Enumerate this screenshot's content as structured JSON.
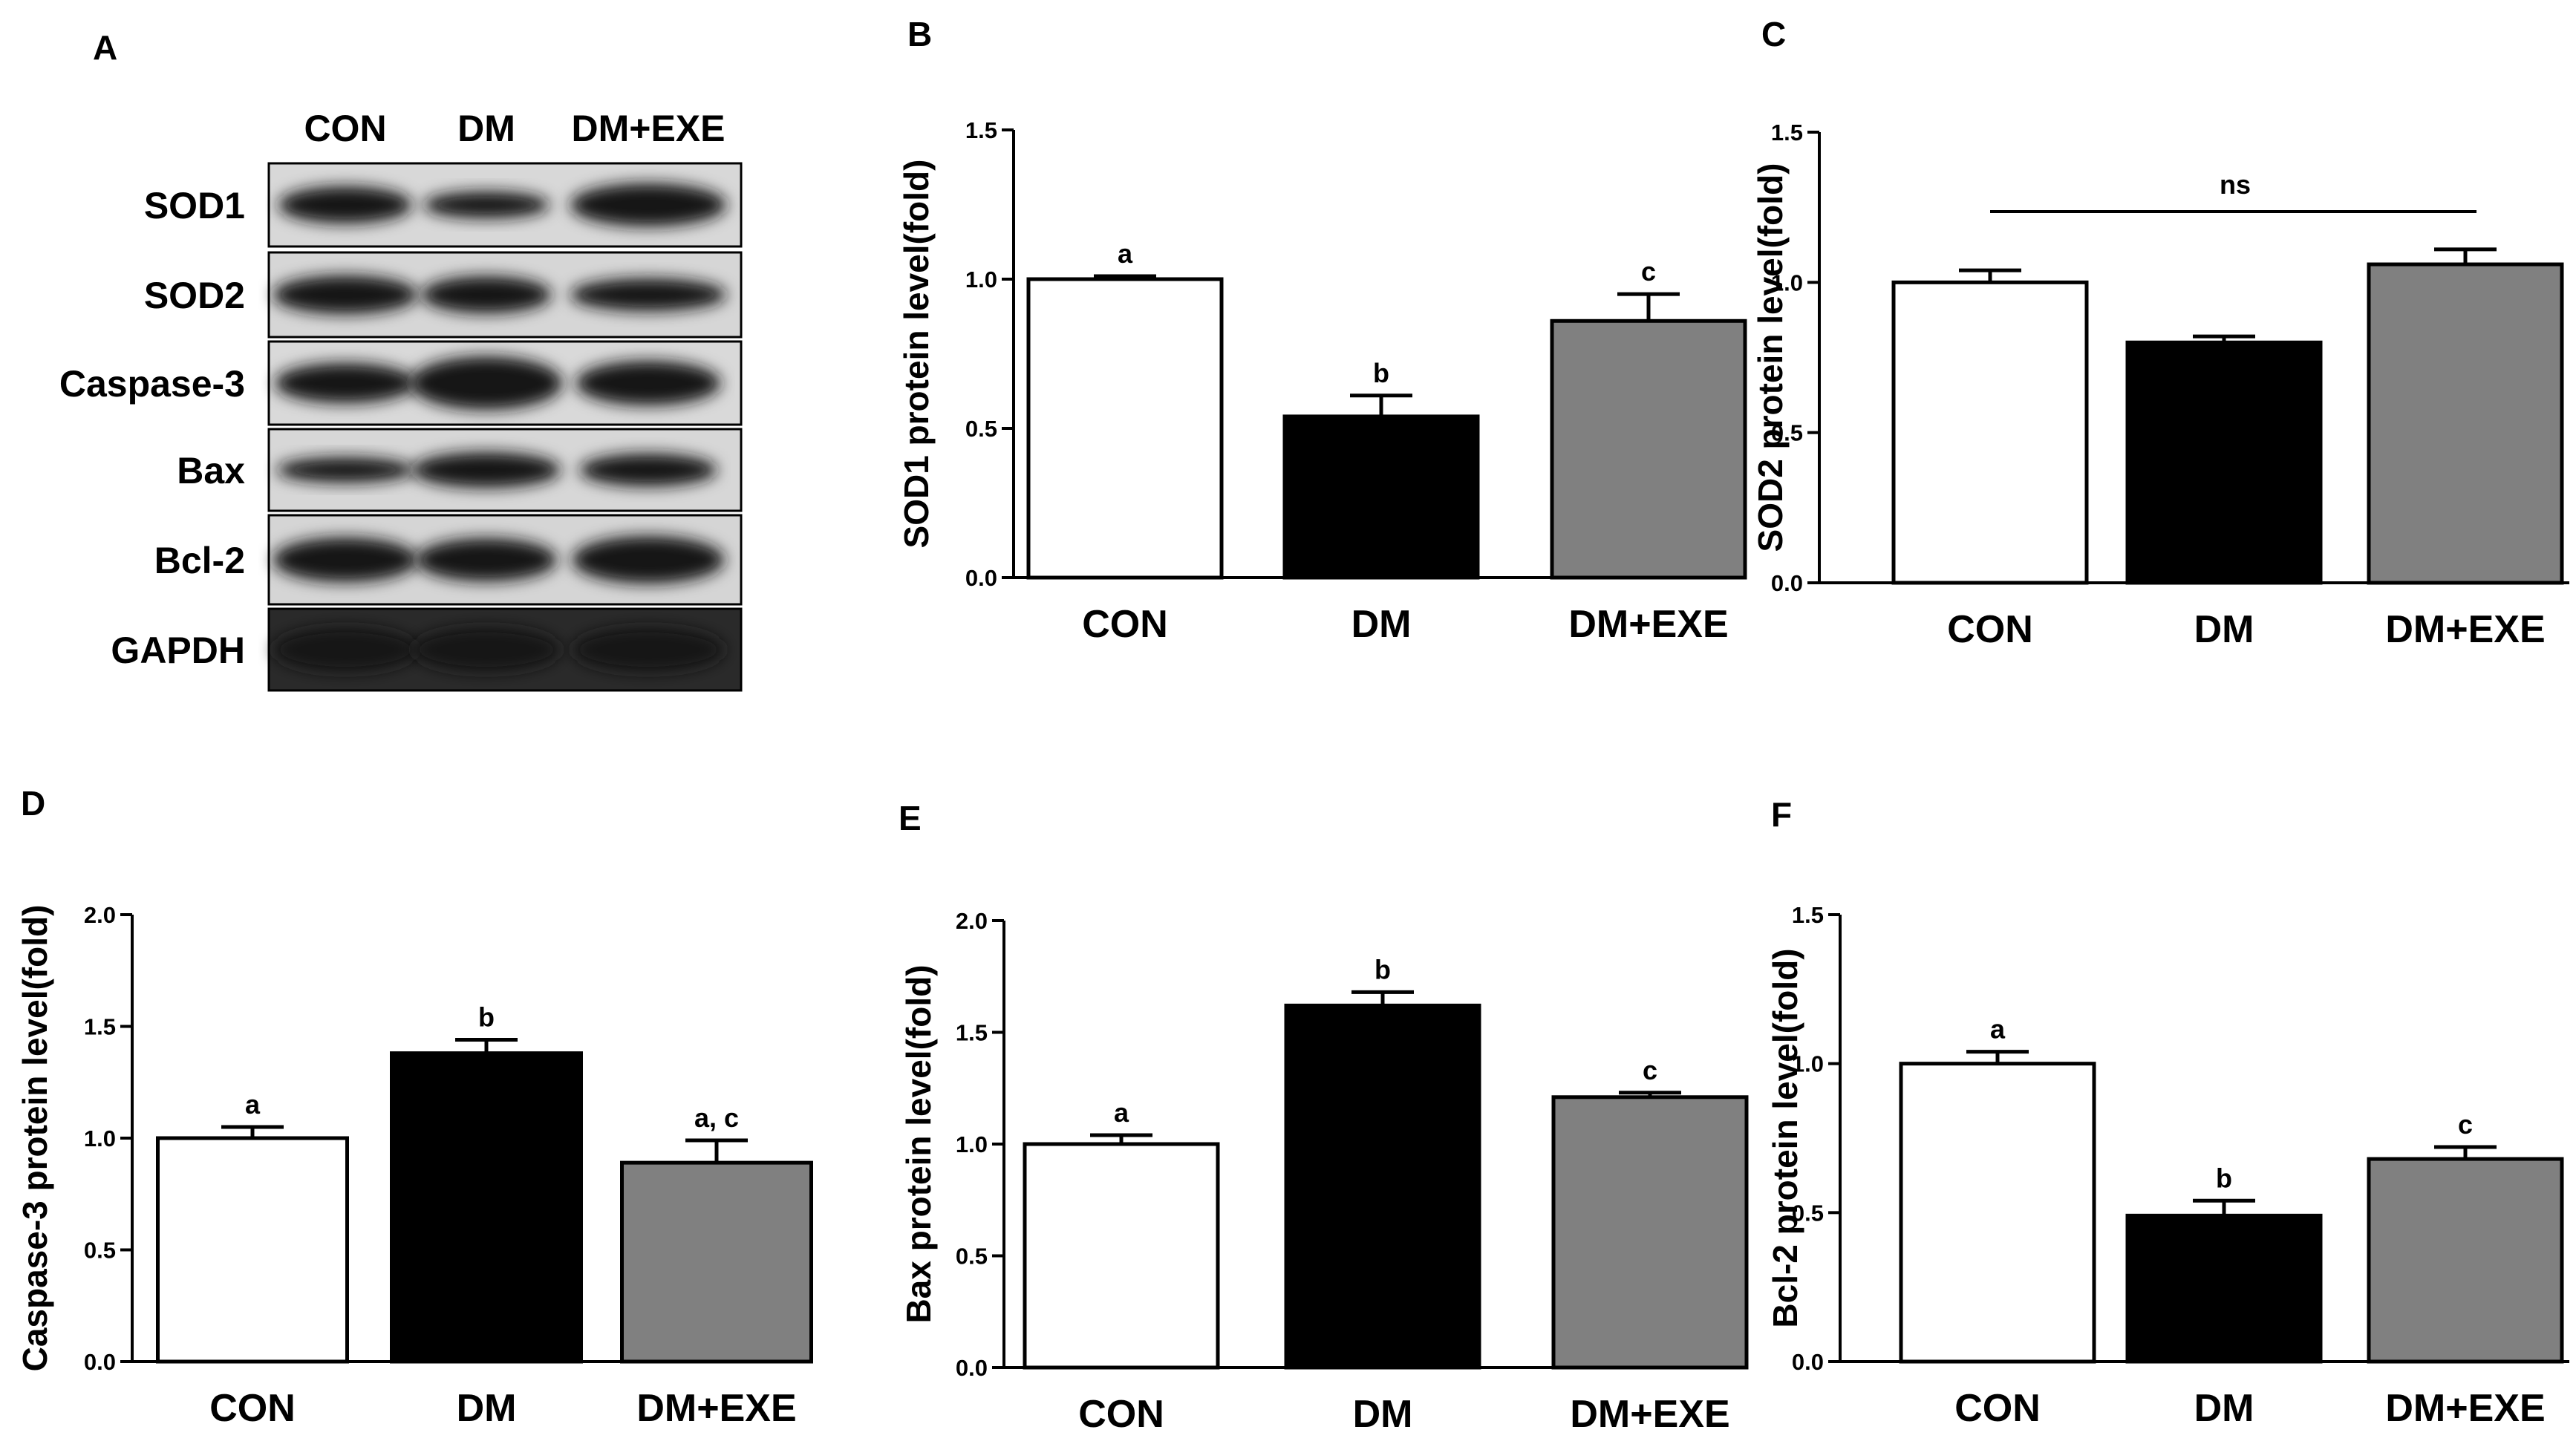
{
  "figure": {
    "western_blot": {
      "panel": "A",
      "columns": [
        "CON",
        "DM",
        "DM+EXE"
      ],
      "rows": [
        "SOD1",
        "SOD2",
        "Caspase-3",
        "Bax",
        "Bcl-2",
        "GAPDH"
      ]
    }
  },
  "colors": {
    "CON": "#ffffff",
    "DM": "#000000",
    "DM+EXE": "#808080",
    "axis": "#000000"
  },
  "chart_data": [
    {
      "panel": "B",
      "type": "bar",
      "categories": [
        "CON",
        "DM",
        "DM+EXE"
      ],
      "values": [
        1.0,
        0.54,
        0.86
      ],
      "errors": [
        0.01,
        0.07,
        0.09
      ],
      "labels": [
        "a",
        "b",
        "c"
      ],
      "ylabel": "SOD1 protein level(fold)",
      "ylim": [
        0,
        1.5
      ],
      "yticks": [
        "0.0",
        "0.5",
        "1.0",
        "1.5"
      ],
      "grid": false
    },
    {
      "panel": "C",
      "type": "bar",
      "categories": [
        "CON",
        "DM",
        "DM+EXE"
      ],
      "values": [
        1.0,
        0.8,
        1.06
      ],
      "errors": [
        0.04,
        0.02,
        0.05
      ],
      "labels": [
        "",
        "",
        ""
      ],
      "bracket": "ns",
      "ylabel": "SOD2 protein level(fold)",
      "ylim": [
        0,
        1.5
      ],
      "yticks": [
        "0.0",
        "0.5",
        "1.0",
        "1.5"
      ],
      "grid": false
    },
    {
      "panel": "D",
      "type": "bar",
      "categories": [
        "CON",
        "DM",
        "DM+EXE"
      ],
      "values": [
        1.0,
        1.38,
        0.89
      ],
      "errors": [
        0.05,
        0.06,
        0.1
      ],
      "labels": [
        "a",
        "b",
        "a, c"
      ],
      "ylabel": "Caspase-3 protein level(fold)",
      "ylim": [
        0,
        2.0
      ],
      "yticks": [
        "0.0",
        "0.5",
        "1.0",
        "1.5",
        "2.0"
      ],
      "grid": false
    },
    {
      "panel": "E",
      "type": "bar",
      "categories": [
        "CON",
        "DM",
        "DM+EXE"
      ],
      "values": [
        1.0,
        1.62,
        1.21
      ],
      "errors": [
        0.04,
        0.06,
        0.02
      ],
      "labels": [
        "a",
        "b",
        "c"
      ],
      "ylabel": "Bax protein level(fold)",
      "ylim": [
        0,
        2.0
      ],
      "yticks": [
        "0.0",
        "0.5",
        "1.0",
        "1.5",
        "2.0"
      ],
      "grid": false
    },
    {
      "panel": "F",
      "type": "bar",
      "categories": [
        "CON",
        "DM",
        "DM+EXE"
      ],
      "values": [
        1.0,
        0.49,
        0.68
      ],
      "errors": [
        0.04,
        0.05,
        0.04
      ],
      "labels": [
        "a",
        "b",
        "c"
      ],
      "ylabel": "Bcl-2 protein level(fold)",
      "ylim": [
        0,
        1.5
      ],
      "yticks": [
        "0.0",
        "0.5",
        "1.0",
        "1.5"
      ],
      "grid": false
    }
  ]
}
